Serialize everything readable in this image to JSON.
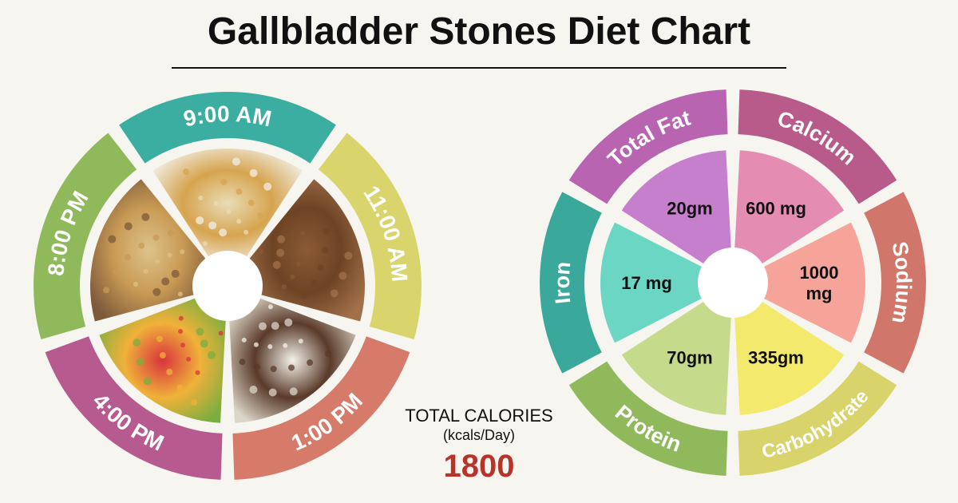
{
  "title": "Gallbladder Stones Diet Chart",
  "colors": {
    "background": "#f7f5ef",
    "calories_value": "#b8332a"
  },
  "meal_wheel": {
    "center_fill": "#ffffff",
    "segments": [
      {
        "label": "9:00 AM",
        "color": "#3bada1",
        "food": "stuffed-paratha-photo",
        "food_colors": [
          "#e9dcb6",
          "#d6a44f",
          "#f2efe6"
        ]
      },
      {
        "label": "11:00 AM",
        "color": "#d9d46c",
        "food": "black-chickpeas-photo",
        "food_colors": [
          "#8a5a34",
          "#6e4425",
          "#a2714a"
        ]
      },
      {
        "label": "1:00 PM",
        "color": "#d67a6a",
        "food": "rice-bowl-photo",
        "food_colors": [
          "#f4f2ea",
          "#5a3a2a",
          "#dcd6c8"
        ]
      },
      {
        "label": "4:00 PM",
        "color": "#b65a90",
        "food": "fruit-salad-photo",
        "food_colors": [
          "#d8333d",
          "#f0b13a",
          "#7cae3f"
        ]
      },
      {
        "label": "8:00 PM",
        "color": "#8fb95b",
        "food": "upma-photo",
        "food_colors": [
          "#dcc38a",
          "#c99a55",
          "#7c5a3a"
        ]
      }
    ]
  },
  "calories": {
    "title": "TOTAL CALORIES",
    "unit": "(kcals/Day)",
    "value": "1800"
  },
  "chart_data": {
    "type": "pie",
    "title": "",
    "slices": [
      {
        "name": "Total Fat",
        "value_label": "20gm",
        "color": "#b864b0",
        "inner_color": "#c67fcd"
      },
      {
        "name": "Calcium",
        "value_label": "600 mg",
        "color": "#b85a8a",
        "inner_color": "#e58cb3"
      },
      {
        "name": "Sodium",
        "value_label": "1000 mg",
        "color": "#d0766a",
        "inner_color": "#f6a49a"
      },
      {
        "name": "Carbohydrate",
        "value_label": "335gm",
        "color": "#d8d36a",
        "inner_color": "#f3ea6d"
      },
      {
        "name": "Protein",
        "value_label": "70gm",
        "color": "#8fb95b",
        "inner_color": "#c6da8c"
      },
      {
        "name": "Iron",
        "value_label": "17 mg",
        "color": "#3aa89b",
        "inner_color": "#6cd6c4"
      }
    ]
  }
}
